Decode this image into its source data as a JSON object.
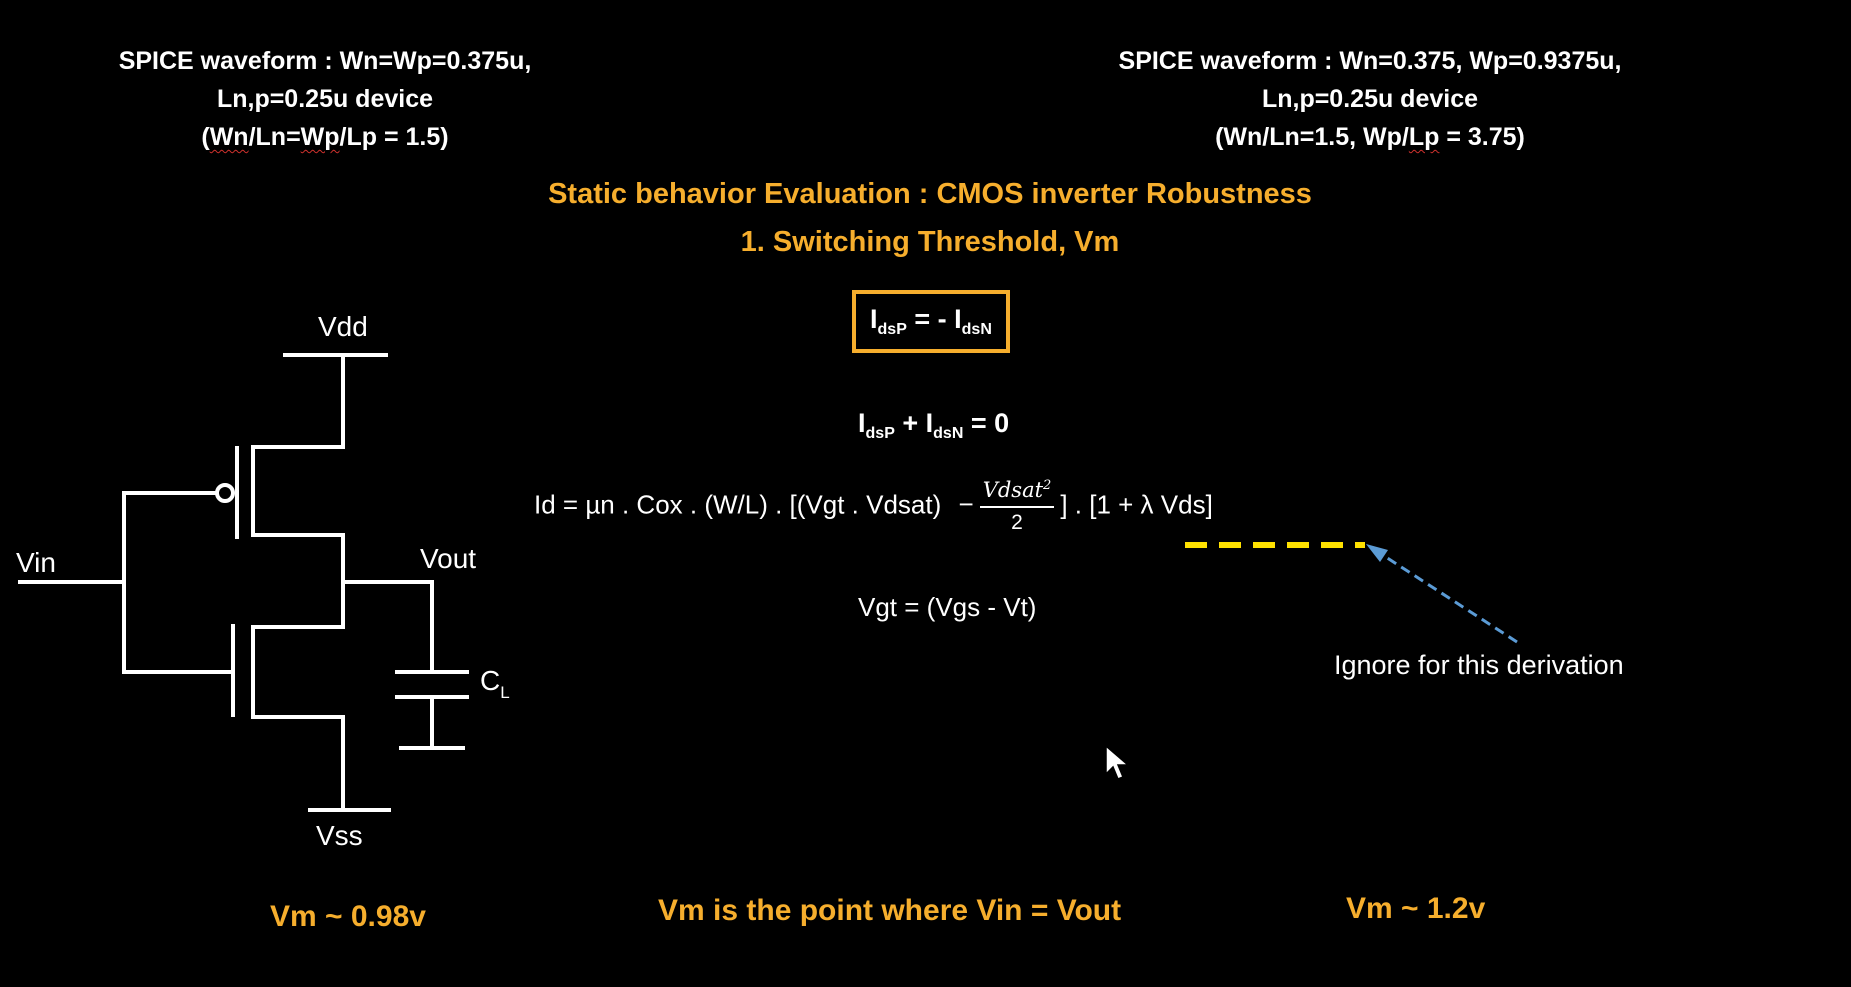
{
  "headers": {
    "left": {
      "line1": "SPICE waveform : Wn=Wp=0.375u,",
      "line2": "Ln,p=0.25u device",
      "line3_open": "(",
      "line3_wn": "Wn",
      "line3_mid": "/Ln=",
      "line3_wp": "Wp",
      "line3_tail": "/Lp = 1.5)"
    },
    "right": {
      "line1": "SPICE waveform : Wn=0.375, Wp=0.9375u,",
      "line2": "Ln,p=0.25u device",
      "line3_head": "(Wn/Ln=1.5, Wp/",
      "line3_lp": "Lp",
      "line3_tail": " = 3.75)"
    }
  },
  "title": {
    "line1": "Static behavior Evaluation : CMOS inverter Robustness",
    "line2": "1. Switching Threshold, Vm"
  },
  "equations": {
    "boxed": {
      "i1": "I",
      "s1": "dsP",
      "op": " = - ",
      "i2": "I",
      "s2": "dsN"
    },
    "sum": {
      "i1": "I",
      "s1": "dsP",
      "op": " + ",
      "i2": "I",
      "s2": "dsN",
      "rhs": " = 0"
    },
    "id": {
      "left": "Id = µn . Cox . (W/L) . [(Vgt . Vdsat)",
      "minus": "−",
      "frac_num": "Vdsat",
      "frac_num_sup": "2",
      "frac_den": "2",
      "right": "] . [1 + λ Vds]"
    },
    "vgt": "Vgt = (Vgs - Vt)"
  },
  "annotation": {
    "text": "Ignore for this derivation",
    "underline_color": "#ffe100",
    "arrow_color": "#5b9bd5"
  },
  "circuit": {
    "vdd": "Vdd",
    "vss": "Vss",
    "vin": "Vin",
    "vout": "Vout",
    "cap_label": "C",
    "cap_sub": "L"
  },
  "bottom": {
    "left": "Vm ~ 0.98v",
    "center": "Vm is the point where Vin = Vout",
    "right": "Vm ~ 1.2v"
  },
  "colors": {
    "accent": "#f6ae2d",
    "background": "#000000",
    "text": "#ffffff"
  }
}
